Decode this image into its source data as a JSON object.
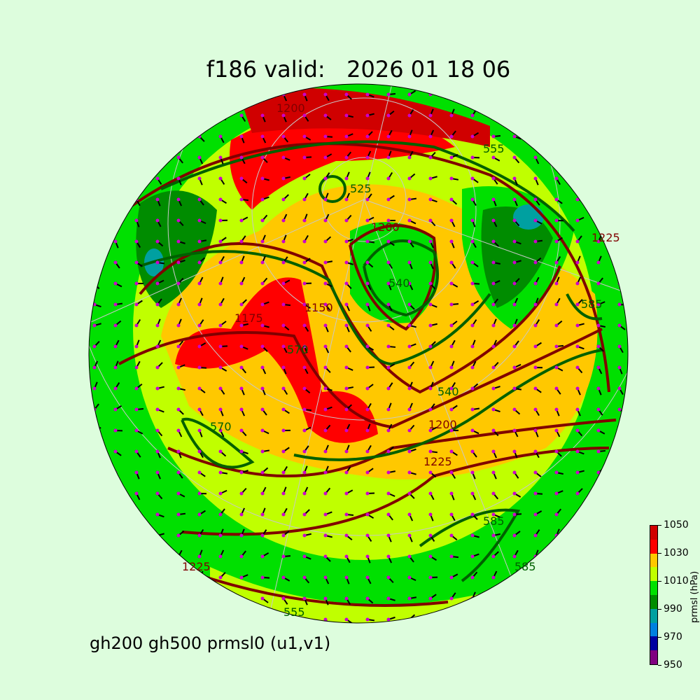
{
  "title": "f186 valid:   2026 01 18 06",
  "subtitle": "gh200 gh500 prmsl0 (u1,v1)",
  "colorbar": {
    "label": "prmsl (hPa)",
    "ticks": [
      "950",
      "970",
      "990",
      "1010",
      "1030",
      "1050"
    ],
    "bins": [
      950,
      960,
      970,
      980,
      990,
      1000,
      1010,
      1020,
      1030,
      1040,
      1050
    ],
    "colors": [
      "#800080",
      "#0000a0",
      "#0080e0",
      "#00a0a0",
      "#008c00",
      "#00e000",
      "#c0ff00",
      "#ffc800",
      "#ff0000",
      "#d00000"
    ]
  },
  "contour_colors": {
    "gh200": "#800000",
    "gh500": "#006000",
    "wind": "#000000",
    "points": "#cc00cc"
  },
  "contour_labels": {
    "gh200": [
      "1200",
      "1200",
      "1225",
      "1225",
      "1175",
      "1150",
      "1225",
      "1200"
    ],
    "gh500": [
      "555",
      "525",
      "570",
      "585",
      "540",
      "570",
      "585",
      "555",
      "585",
      "540"
    ]
  }
}
